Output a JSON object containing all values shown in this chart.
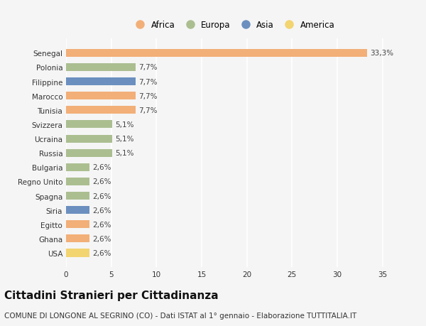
{
  "categories": [
    "Senegal",
    "Polonia",
    "Filippine",
    "Marocco",
    "Tunisia",
    "Svizzera",
    "Ucraina",
    "Russia",
    "Bulgaria",
    "Regno Unito",
    "Spagna",
    "Siria",
    "Egitto",
    "Ghana",
    "USA"
  ],
  "values": [
    33.3,
    7.7,
    7.7,
    7.7,
    7.7,
    5.1,
    5.1,
    5.1,
    2.6,
    2.6,
    2.6,
    2.6,
    2.6,
    2.6,
    2.6
  ],
  "labels": [
    "33,3%",
    "7,7%",
    "7,7%",
    "7,7%",
    "7,7%",
    "5,1%",
    "5,1%",
    "5,1%",
    "2,6%",
    "2,6%",
    "2,6%",
    "2,6%",
    "2,6%",
    "2,6%",
    "2,6%"
  ],
  "continent": [
    "Africa",
    "Europa",
    "Asia",
    "Africa",
    "Africa",
    "Europa",
    "Europa",
    "Europa",
    "Europa",
    "Europa",
    "Europa",
    "Asia",
    "Africa",
    "Africa",
    "America"
  ],
  "colors": {
    "Africa": "#F2AF78",
    "Europa": "#ABBE90",
    "Asia": "#6B8FBF",
    "America": "#F2D471"
  },
  "legend_order": [
    "Africa",
    "Europa",
    "Asia",
    "America"
  ],
  "xlim": [
    0,
    37
  ],
  "xticks": [
    0,
    5,
    10,
    15,
    20,
    25,
    30,
    35
  ],
  "title": "Cittadini Stranieri per Cittadinanza",
  "subtitle": "COMUNE DI LONGONE AL SEGRINO (CO) - Dati ISTAT al 1° gennaio - Elaborazione TUTTITALIA.IT",
  "background_color": "#f5f5f5",
  "bar_height": 0.55,
  "grid_color": "#ffffff",
  "title_fontsize": 11,
  "subtitle_fontsize": 7.5,
  "tick_fontsize": 7.5,
  "label_fontsize": 7.5,
  "legend_fontsize": 8.5
}
